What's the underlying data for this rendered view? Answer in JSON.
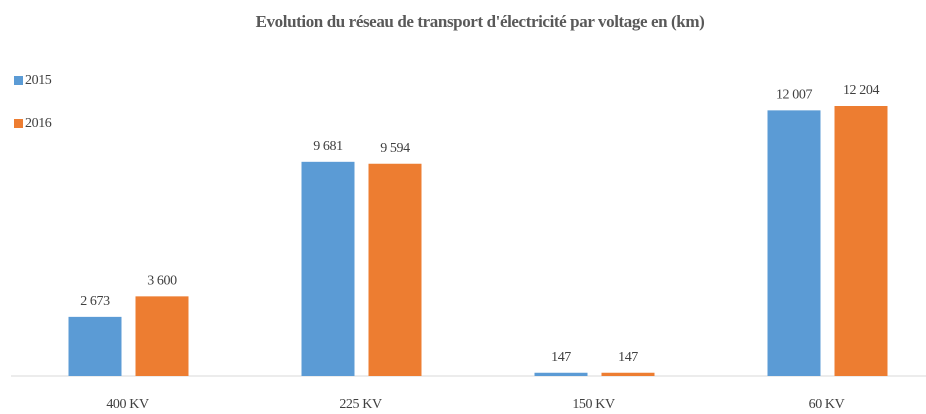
{
  "chart_data": {
    "type": "bar",
    "title": "Evolution du réseau de transport d'électricité par voltage en (km)",
    "categories": [
      "400 KV",
      "225 KV",
      "150 KV",
      "60 KV"
    ],
    "series": [
      {
        "name": "2015",
        "color": "#5b9bd5",
        "values": [
          2673,
          9681,
          147,
          12007
        ],
        "value_labels": [
          "2 673",
          "9 681",
          "147",
          "12 007"
        ]
      },
      {
        "name": "2016",
        "color": "#ed7d31",
        "values": [
          3600,
          9594,
          147,
          12204
        ],
        "value_labels": [
          "3 600",
          "9 594",
          "147",
          "12 204"
        ]
      }
    ],
    "legend": "top-left"
  }
}
